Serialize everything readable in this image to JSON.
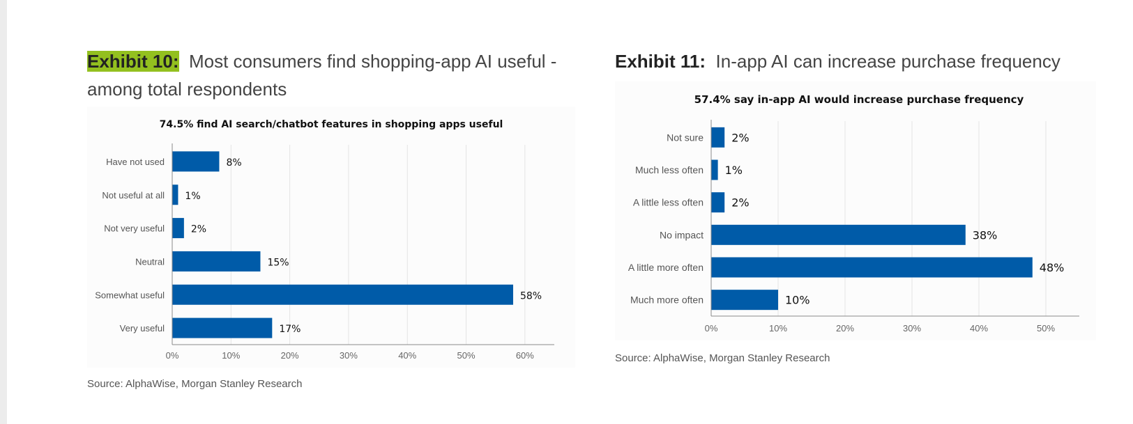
{
  "exhibit10": {
    "label": "Exhibit 10",
    "colon": ":",
    "title": "Most consumers find shopping-app AI useful - among total respondents",
    "source": "Source: AlphaWise, Morgan Stanley Research"
  },
  "exhibit11": {
    "label": "Exhibit 11",
    "colon": ":",
    "title": "In-app AI can increase purchase frequency",
    "source": "Source: AlphaWise, Morgan Stanley Research"
  },
  "colors": {
    "bar": "#005ba8",
    "highlight": "#93c01f",
    "grid": "#e4e4e4",
    "axis": "#8a8a8a"
  },
  "chart_data": [
    {
      "type": "bar",
      "orientation": "horizontal",
      "title": "74.5% find AI search/chatbot features in shopping apps useful",
      "categories": [
        "Have not used",
        "Not useful at all",
        "Not very useful",
        "Neutral",
        "Somewhat useful",
        "Very useful"
      ],
      "values": [
        8,
        1,
        2,
        15,
        58,
        17
      ],
      "data_labels": [
        "8%",
        "1%",
        "2%",
        "15%",
        "58%",
        "17%"
      ],
      "xlim": [
        0,
        65
      ],
      "xticks": [
        0,
        10,
        20,
        30,
        40,
        50,
        60
      ],
      "xtick_labels": [
        "0%",
        "10%",
        "20%",
        "30%",
        "40%",
        "50%",
        "60%"
      ],
      "grid": true,
      "legend": "none"
    },
    {
      "type": "bar",
      "orientation": "horizontal",
      "title": "57.4% say in-app AI would increase purchase frequency",
      "categories": [
        "Not sure",
        "Much less often",
        "A little less often",
        "No impact",
        "A little more often",
        "Much more often"
      ],
      "values": [
        2,
        1,
        2,
        38,
        48,
        10
      ],
      "data_labels": [
        "2%",
        "1%",
        "2%",
        "38%",
        "48%",
        "10%"
      ],
      "xlim": [
        0,
        55
      ],
      "xticks": [
        0,
        10,
        20,
        30,
        40,
        50
      ],
      "xtick_labels": [
        "0%",
        "10%",
        "20%",
        "30%",
        "40%",
        "50%"
      ],
      "grid": true,
      "legend": "none"
    }
  ]
}
